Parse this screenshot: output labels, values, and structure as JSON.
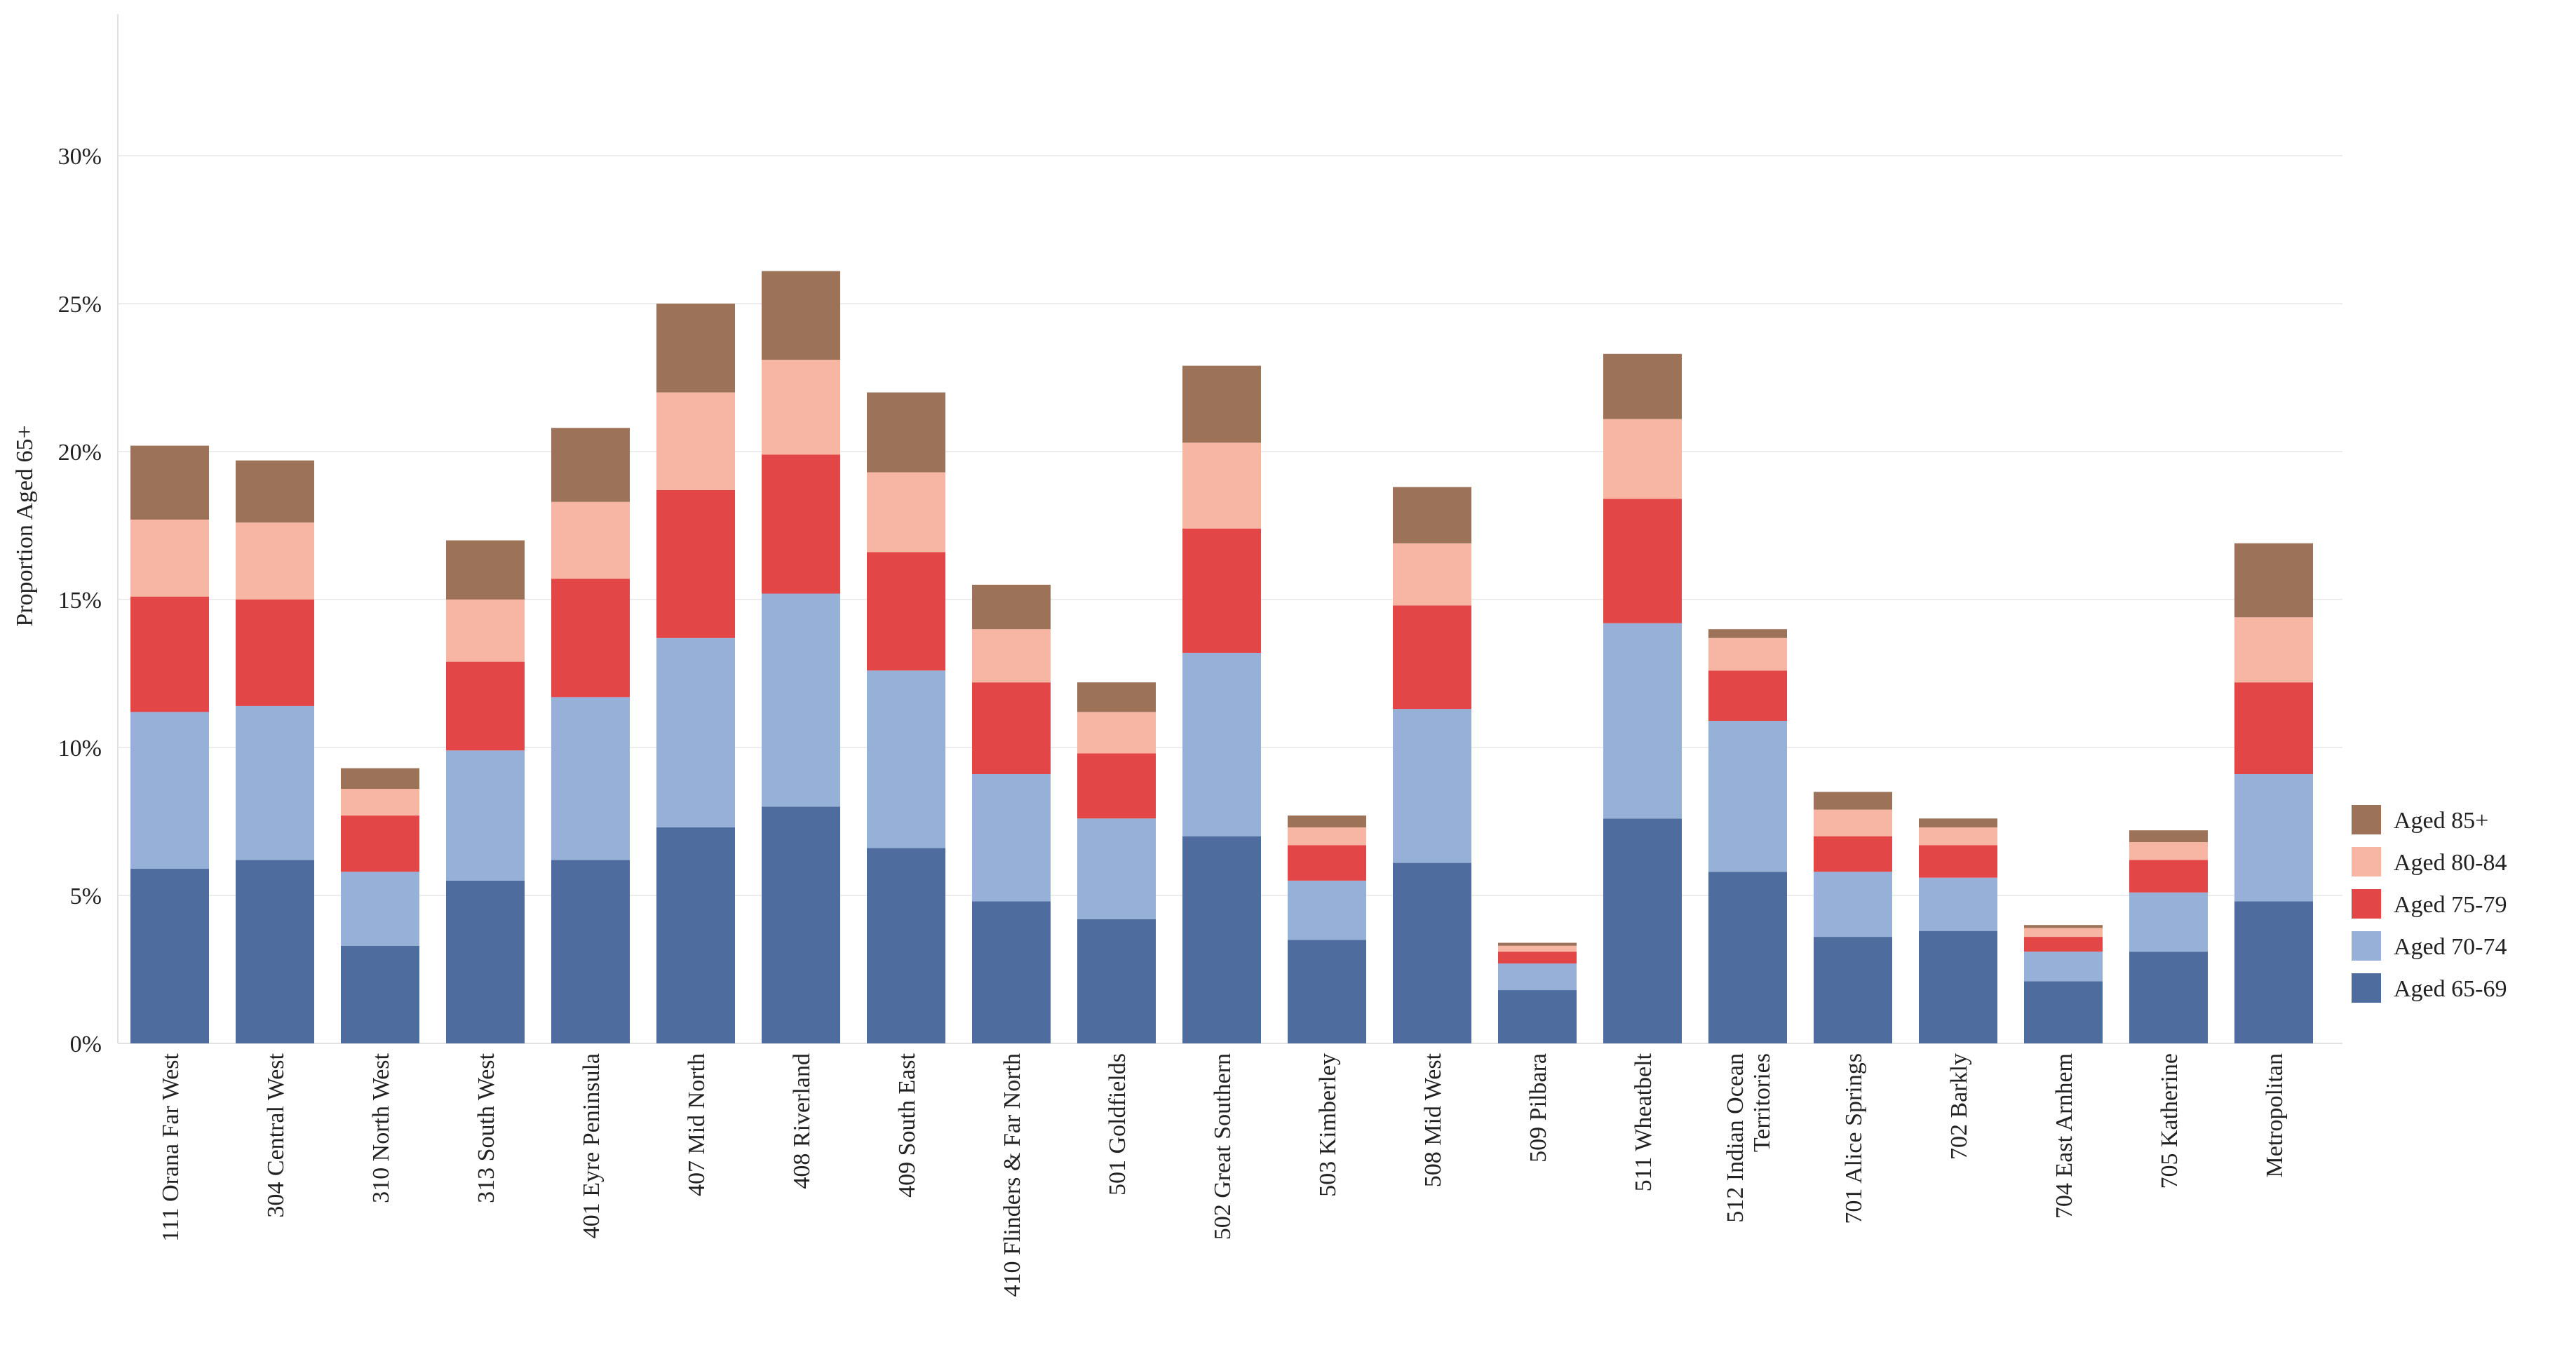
{
  "chart_data": {
    "type": "bar",
    "stacked": true,
    "ylabel": "Proportion Aged 65+",
    "xlabel": "",
    "ylim": [
      0,
      0.33
    ],
    "yticks": [
      0,
      0.05,
      0.1,
      0.15,
      0.2,
      0.25,
      0.3
    ],
    "ytick_labels": [
      "0%",
      "5%",
      "10%",
      "15%",
      "20%",
      "25%",
      "30%"
    ],
    "grid": true,
    "legend_position": "right",
    "categories": [
      "111  Orana Far West",
      "304  Central West",
      "310  North West",
      "313  South West",
      "401  Eyre Peninsula",
      "407  Mid North",
      "408  Riverland",
      "409  South East",
      "410  Flinders & Far North",
      "501  Goldfields",
      "502  Great Southern",
      "503  Kimberley",
      "508  Mid West",
      "509  Pilbara",
      "511  Wheatbelt",
      "512  Indian Ocean\nTerritories",
      "701  Alice Springs",
      "702  Barkly",
      "704  East Arnhem",
      "705  Katherine",
      "Metropolitan"
    ],
    "series": [
      {
        "name": "Aged 65-69",
        "color": "#4e6d9e",
        "values": [
          0.059,
          0.062,
          0.033,
          0.055,
          0.062,
          0.073,
          0.08,
          0.066,
          0.048,
          0.042,
          0.07,
          0.035,
          0.061,
          0.018,
          0.076,
          0.058,
          0.036,
          0.038,
          0.021,
          0.031,
          0.048
        ]
      },
      {
        "name": "Aged 70-74",
        "color": "#96b0d8",
        "values": [
          0.053,
          0.052,
          0.025,
          0.044,
          0.055,
          0.064,
          0.072,
          0.06,
          0.043,
          0.034,
          0.062,
          0.02,
          0.052,
          0.009,
          0.066,
          0.051,
          0.022,
          0.018,
          0.01,
          0.02,
          0.043
        ]
      },
      {
        "name": "Aged 75-79",
        "color": "#e34646",
        "values": [
          0.039,
          0.036,
          0.019,
          0.03,
          0.04,
          0.05,
          0.047,
          0.04,
          0.031,
          0.022,
          0.042,
          0.012,
          0.035,
          0.004,
          0.042,
          0.017,
          0.012,
          0.011,
          0.005,
          0.011,
          0.031
        ]
      },
      {
        "name": "Aged 80-84",
        "color": "#f7b5a3",
        "values": [
          0.026,
          0.026,
          0.009,
          0.021,
          0.026,
          0.033,
          0.032,
          0.027,
          0.018,
          0.014,
          0.029,
          0.006,
          0.021,
          0.002,
          0.027,
          0.011,
          0.009,
          0.006,
          0.003,
          0.006,
          0.022
        ]
      },
      {
        "name": "Aged 85+",
        "color": "#9c7358",
        "values": [
          0.025,
          0.021,
          0.007,
          0.02,
          0.025,
          0.03,
          0.03,
          0.027,
          0.015,
          0.01,
          0.026,
          0.004,
          0.019,
          0.001,
          0.022,
          0.003,
          0.006,
          0.003,
          0.001,
          0.004,
          0.025
        ]
      }
    ]
  }
}
